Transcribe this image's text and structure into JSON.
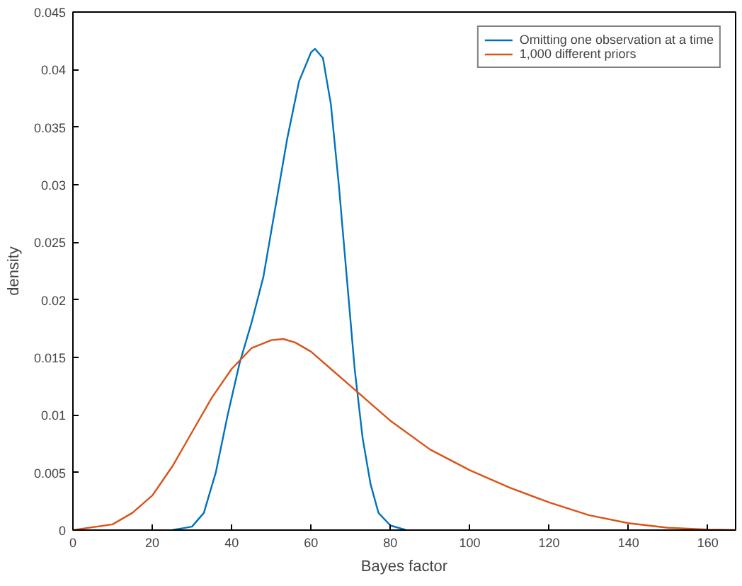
{
  "chart_data": {
    "type": "line",
    "xlabel": "Bayes factor",
    "ylabel": "density",
    "xlim": [
      0,
      167
    ],
    "ylim": [
      0,
      0.045
    ],
    "xticks": [
      0,
      20,
      40,
      60,
      80,
      100,
      120,
      140,
      160
    ],
    "yticks": [
      0,
      0.005,
      0.01,
      0.015,
      0.02,
      0.025,
      0.03,
      0.035,
      0.04,
      0.045
    ],
    "grid": false,
    "legend": "top right",
    "marker": "none",
    "line_style": "solid",
    "series": [
      {
        "name": "Omitting one observation at a time",
        "color": "#0072bd",
        "x": [
          25,
          30,
          33,
          36,
          39,
          42,
          45,
          48,
          51,
          54,
          57,
          60,
          61,
          63,
          65,
          67,
          69,
          71,
          73,
          75,
          77,
          80,
          84
        ],
        "values": [
          0,
          0.0003,
          0.0015,
          0.005,
          0.01,
          0.0145,
          0.018,
          0.022,
          0.028,
          0.034,
          0.039,
          0.0415,
          0.0418,
          0.041,
          0.037,
          0.03,
          0.022,
          0.014,
          0.008,
          0.004,
          0.0015,
          0.0004,
          0
        ]
      },
      {
        "name": "1,000 different priors",
        "color": "#d95319",
        "x": [
          0,
          10,
          15,
          20,
          25,
          30,
          35,
          40,
          45,
          50,
          53,
          56,
          60,
          65,
          70,
          75,
          80,
          90,
          100,
          110,
          120,
          130,
          140,
          150,
          160,
          167
        ],
        "values": [
          0,
          0.0005,
          0.0015,
          0.003,
          0.0055,
          0.0085,
          0.0115,
          0.014,
          0.0158,
          0.0165,
          0.0166,
          0.0163,
          0.0155,
          0.014,
          0.0125,
          0.011,
          0.0095,
          0.007,
          0.0052,
          0.0037,
          0.0024,
          0.0013,
          0.0006,
          0.0002,
          5e-05,
          0
        ]
      }
    ]
  }
}
